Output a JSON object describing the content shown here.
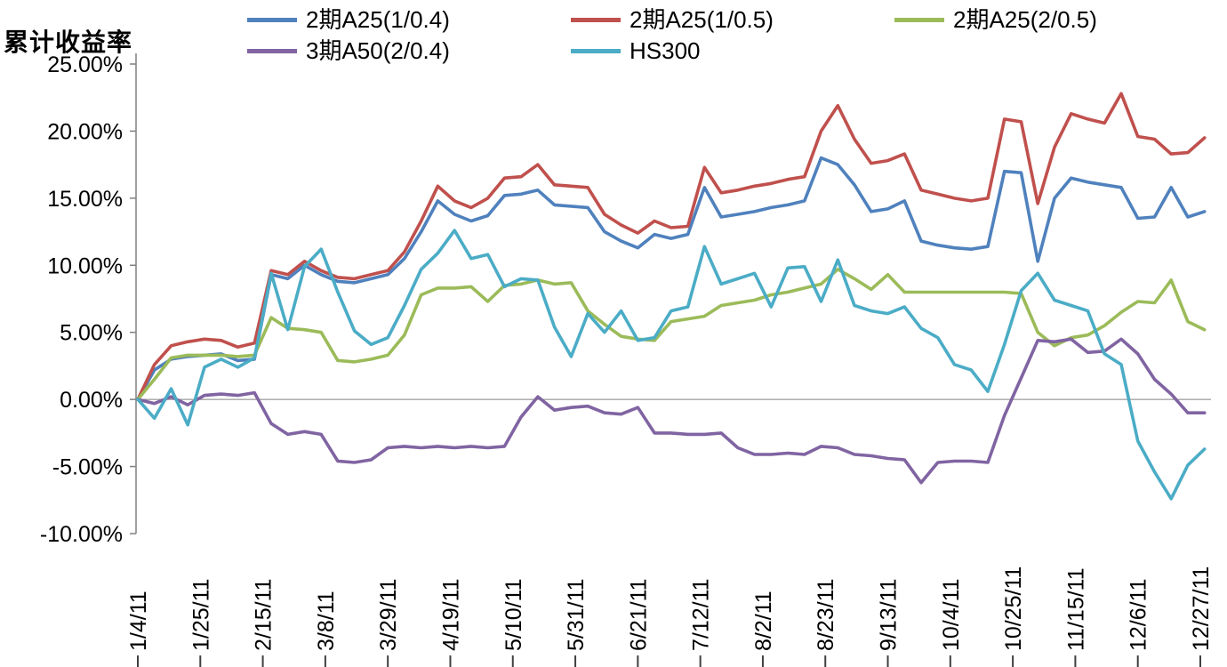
{
  "chart_data": {
    "type": "line",
    "title": "累计收益率",
    "xlabel": "",
    "ylabel": "",
    "ylim": [
      -10,
      25
    ],
    "grid": false,
    "zero_line": true,
    "legend_position": "top",
    "legend_rows": [
      [
        0,
        1,
        2
      ],
      [
        3,
        4
      ]
    ],
    "y_ticks": [
      {
        "value": 25,
        "label": "25.00%"
      },
      {
        "value": 20,
        "label": "20.00%"
      },
      {
        "value": 15,
        "label": "15.00%"
      },
      {
        "value": 10,
        "label": "10.00%"
      },
      {
        "value": 5,
        "label": "5.00%"
      },
      {
        "value": 0,
        "label": "0.00%"
      },
      {
        "value": -5,
        "label": "-5.00%"
      },
      {
        "value": -10,
        "label": "-10.00%"
      }
    ],
    "x_tick_days": [
      0,
      15,
      30,
      45,
      60,
      75,
      90,
      105,
      120,
      135,
      150,
      165,
      180,
      195,
      210,
      225,
      240,
      255
    ],
    "x_tick_labels": [
      "1/4/11",
      "1/25/11",
      "2/15/11",
      "3/8/11",
      "3/29/11",
      "4/19/11",
      "5/10/11",
      "5/31/11",
      "6/21/11",
      "7/12/11",
      "8/2/11",
      "8/23/11",
      "9/13/11",
      "10/4/11",
      "10/25/11",
      "11/15/11",
      "12/6/11",
      "12/27/11"
    ],
    "x": [
      0,
      4,
      8,
      12,
      16,
      20,
      24,
      28,
      32,
      36,
      40,
      44,
      48,
      52,
      56,
      60,
      64,
      68,
      72,
      76,
      80,
      84,
      88,
      92,
      96,
      100,
      104,
      108,
      112,
      116,
      120,
      124,
      128,
      132,
      136,
      140,
      144,
      148,
      152,
      156,
      160,
      164,
      168,
      172,
      176,
      180,
      184,
      188,
      192,
      196,
      200,
      204,
      208,
      212,
      216,
      220,
      224,
      228,
      232,
      236,
      240,
      244,
      248,
      252,
      256
    ],
    "series": [
      {
        "name": "2期A25(1/0.4)",
        "color": "#4F81BD",
        "values": [
          0.0,
          2.2,
          3.0,
          3.2,
          3.3,
          3.4,
          2.9,
          3.0,
          9.3,
          9.0,
          10.0,
          9.3,
          8.8,
          8.7,
          9.0,
          9.3,
          10.5,
          12.5,
          14.8,
          13.8,
          13.3,
          13.7,
          15.2,
          15.3,
          15.6,
          14.5,
          14.4,
          14.3,
          12.5,
          11.8,
          11.3,
          12.3,
          12.0,
          12.3,
          15.8,
          13.6,
          13.8,
          14.0,
          14.3,
          14.5,
          14.8,
          18.0,
          17.5,
          16.0,
          14.0,
          14.2,
          14.8,
          11.8,
          11.5,
          11.3,
          11.2,
          11.4,
          17.0,
          16.9,
          10.3,
          15.0,
          16.5,
          16.2,
          16.0,
          15.8,
          13.5,
          13.6,
          15.8,
          13.6,
          14.0
        ]
      },
      {
        "name": "2期A25(1/0.5)",
        "color": "#C0504D",
        "values": [
          0.0,
          2.6,
          4.0,
          4.3,
          4.5,
          4.4,
          3.9,
          4.2,
          9.6,
          9.3,
          10.3,
          9.6,
          9.1,
          9.0,
          9.3,
          9.6,
          11.0,
          13.3,
          15.9,
          14.8,
          14.3,
          15.0,
          16.5,
          16.6,
          17.5,
          16.0,
          15.9,
          15.8,
          13.8,
          13.0,
          12.4,
          13.3,
          12.8,
          12.9,
          17.3,
          15.4,
          15.6,
          15.9,
          16.1,
          16.4,
          16.6,
          20.0,
          21.9,
          19.4,
          17.6,
          17.8,
          18.3,
          15.6,
          15.3,
          15.0,
          14.8,
          15.0,
          20.9,
          20.7,
          14.6,
          18.8,
          21.3,
          20.9,
          20.6,
          22.8,
          19.6,
          19.4,
          18.3,
          18.4,
          19.5
        ]
      },
      {
        "name": "2期A25(2/0.5)",
        "color": "#9BBB59",
        "values": [
          0.0,
          1.5,
          3.1,
          3.3,
          3.3,
          3.3,
          3.2,
          3.3,
          6.1,
          5.3,
          5.2,
          5.0,
          2.9,
          2.8,
          3.0,
          3.3,
          4.8,
          7.8,
          8.3,
          8.3,
          8.4,
          7.3,
          8.5,
          8.6,
          8.9,
          8.6,
          8.7,
          6.6,
          5.6,
          4.7,
          4.5,
          4.4,
          5.8,
          6.0,
          6.2,
          7.0,
          7.2,
          7.4,
          7.8,
          8.0,
          8.3,
          8.6,
          9.7,
          9.0,
          8.2,
          9.3,
          8.0,
          8.0,
          8.0,
          8.0,
          8.0,
          8.0,
          8.0,
          7.9,
          5.0,
          4.0,
          4.6,
          4.8,
          5.5,
          6.5,
          7.3,
          7.2,
          8.9,
          5.8,
          5.2
        ]
      },
      {
        "name": "3期A50(2/0.4)",
        "color": "#8064A2",
        "values": [
          0.0,
          -0.3,
          0.2,
          -0.4,
          0.3,
          0.4,
          0.3,
          0.5,
          -1.8,
          -2.6,
          -2.4,
          -2.6,
          -4.6,
          -4.7,
          -4.5,
          -3.6,
          -3.5,
          -3.6,
          -3.5,
          -3.6,
          -3.5,
          -3.6,
          -3.5,
          -1.3,
          0.2,
          -0.8,
          -0.6,
          -0.5,
          -1.0,
          -1.1,
          -0.6,
          -2.5,
          -2.5,
          -2.6,
          -2.6,
          -2.5,
          -3.6,
          -4.1,
          -4.1,
          -4.0,
          -4.1,
          -3.5,
          -3.6,
          -4.1,
          -4.2,
          -4.4,
          -4.5,
          -6.2,
          -4.7,
          -4.6,
          -4.6,
          -4.7,
          -1.2,
          1.6,
          4.4,
          4.3,
          4.5,
          3.5,
          3.6,
          4.5,
          3.4,
          1.5,
          0.4,
          -1.0,
          -1.0
        ]
      },
      {
        "name": "HS300",
        "color": "#4BACC6",
        "values": [
          0.0,
          -1.4,
          0.8,
          -1.9,
          2.4,
          3.0,
          2.4,
          3.1,
          9.4,
          5.2,
          9.9,
          11.2,
          8.0,
          5.1,
          4.1,
          4.6,
          7.0,
          9.7,
          10.9,
          12.6,
          10.5,
          10.8,
          8.4,
          9.0,
          8.9,
          5.4,
          3.2,
          6.4,
          5.0,
          6.6,
          4.4,
          4.6,
          6.6,
          6.9,
          11.4,
          8.6,
          9.0,
          9.4,
          6.9,
          9.8,
          9.9,
          7.3,
          10.4,
          7.0,
          6.6,
          6.4,
          6.9,
          5.3,
          4.6,
          2.6,
          2.2,
          0.6,
          4.1,
          8.1,
          9.4,
          7.4,
          7.0,
          6.6,
          3.4,
          2.6,
          -3.1,
          -5.4,
          -7.4,
          -4.9,
          -3.7
        ]
      }
    ],
    "axis_color": "#808080",
    "text_color": "#000000"
  }
}
